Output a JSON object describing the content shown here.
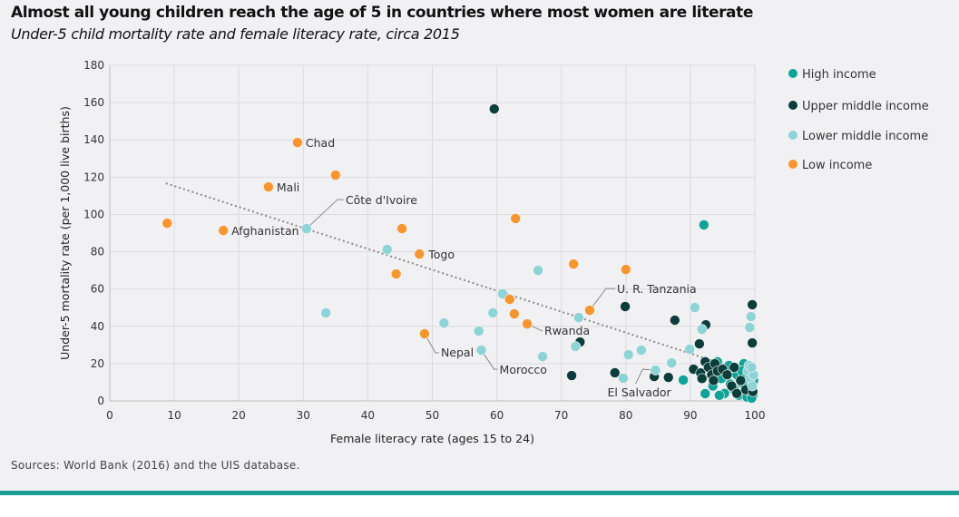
{
  "title": "Almost all young children reach the age of 5 in countries where most women are literate",
  "subtitle": "Under-5 child mortality rate and female literacy rate, circa 2015",
  "source": "Sources: World Bank (2016) and the UIS database.",
  "colors": {
    "background": "#f1f1f3",
    "accent_bar": "#1b9e96",
    "grid": "#dcdcdf",
    "trend": "#8a8a8a"
  },
  "chart_data": {
    "type": "scatter",
    "xlabel": "Female literacy rate (ages 15 to 24)",
    "ylabel": "Under-5 mortality rate (per 1,000 live births)",
    "xlim": [
      0,
      100
    ],
    "ylim": [
      0,
      180
    ],
    "xticks": [
      0,
      10,
      20,
      30,
      40,
      50,
      60,
      70,
      80,
      90,
      100
    ],
    "yticks": [
      0,
      20,
      40,
      60,
      80,
      100,
      120,
      140,
      160,
      180
    ],
    "grid": true,
    "legend_position": "right",
    "trendline": {
      "style": "dotted",
      "points": [
        [
          8.7,
          116.7
        ],
        [
          96.6,
          18
        ]
      ]
    },
    "series": [
      {
        "name": "High income",
        "color": "#0ea396",
        "points": [
          [
            92.1,
            94.4
          ],
          [
            88.9,
            11.2
          ],
          [
            92.3,
            3.9
          ],
          [
            93.5,
            8
          ],
          [
            94.2,
            21
          ],
          [
            94.8,
            12
          ],
          [
            95.3,
            4
          ],
          [
            95.6,
            16
          ],
          [
            96.2,
            9
          ],
          [
            96.8,
            6
          ],
          [
            97.2,
            14
          ],
          [
            97.5,
            3
          ],
          [
            97.9,
            10
          ],
          [
            98.3,
            20
          ],
          [
            98.5,
            7
          ],
          [
            98.8,
            2
          ],
          [
            99.0,
            13
          ],
          [
            99.2,
            5
          ],
          [
            99.4,
            17
          ],
          [
            99.6,
            9
          ],
          [
            99.7,
            3
          ],
          [
            99.8,
            11
          ],
          [
            94.5,
            3
          ],
          [
            96.0,
            19
          ],
          [
            98.0,
            16
          ],
          [
            99.5,
            1.5
          ],
          [
            98.6,
            12
          ]
        ]
      },
      {
        "name": "Upper middle income",
        "color": "#0b3d3a",
        "points": [
          [
            59.6,
            156.6
          ],
          [
            72.9,
            31.6
          ],
          [
            71.6,
            13.6
          ],
          [
            78.3,
            15.1
          ],
          [
            79.9,
            50.6
          ],
          [
            87.6,
            43.3
          ],
          [
            92.4,
            40.8
          ],
          [
            91.4,
            30.6
          ],
          [
            99.6,
            51.6
          ],
          [
            99.6,
            31.1
          ],
          [
            84.4,
            13.1
          ],
          [
            86.6,
            12.6
          ],
          [
            90.5,
            17
          ],
          [
            91.6,
            15
          ],
          [
            92.3,
            21
          ],
          [
            92.8,
            18
          ],
          [
            93.3,
            14
          ],
          [
            93.8,
            20
          ],
          [
            94.2,
            16
          ],
          [
            95.0,
            17
          ],
          [
            95.7,
            14
          ],
          [
            96.4,
            8
          ],
          [
            96.8,
            18
          ],
          [
            97.2,
            4
          ],
          [
            97.8,
            11
          ],
          [
            98.6,
            6
          ],
          [
            99.3,
            15
          ],
          [
            99.7,
            5
          ],
          [
            93.6,
            11
          ],
          [
            91.8,
            12
          ]
        ]
      },
      {
        "name": "Lower middle income",
        "color": "#8ed3d7",
        "points": [
          [
            30.5,
            92.4
          ],
          [
            33.5,
            47.2
          ],
          [
            43.0,
            81.2
          ],
          [
            51.8,
            41.8
          ],
          [
            57.2,
            37.5
          ],
          [
            57.6,
            27.2
          ],
          [
            59.4,
            47.2
          ],
          [
            60.9,
            57.4
          ],
          [
            66.4,
            70.0
          ],
          [
            67.1,
            23.8
          ],
          [
            72.7,
            44.7
          ],
          [
            72.2,
            29.2
          ],
          [
            79.6,
            12.2
          ],
          [
            80.4,
            24.8
          ],
          [
            82.4,
            27.2
          ],
          [
            84.6,
            16.5
          ],
          [
            87.1,
            20.4
          ],
          [
            89.9,
            27.7
          ],
          [
            90.7,
            50.1
          ],
          [
            91.8,
            38.4
          ],
          [
            99.4,
            45.2
          ],
          [
            99.2,
            39.4
          ],
          [
            98.9,
            16
          ],
          [
            99.3,
            12
          ],
          [
            99.6,
            8
          ],
          [
            99.8,
            14
          ],
          [
            99.1,
            19
          ],
          [
            99.5,
            18
          ]
        ]
      },
      {
        "name": "Low income",
        "color": "#f7962e",
        "points": [
          [
            8.9,
            95.3
          ],
          [
            17.6,
            91.4
          ],
          [
            24.6,
            114.8
          ],
          [
            29.1,
            138.6
          ],
          [
            35.0,
            121.1
          ],
          [
            45.3,
            92.4
          ],
          [
            44.4,
            68.1
          ],
          [
            48.0,
            78.8
          ],
          [
            48.8,
            36.0
          ],
          [
            62.9,
            97.8
          ],
          [
            62.0,
            54.5
          ],
          [
            62.7,
            46.7
          ],
          [
            64.7,
            41.3
          ],
          [
            71.9,
            73.4
          ],
          [
            74.4,
            48.6
          ],
          [
            80.0,
            70.5
          ]
        ]
      }
    ],
    "annotations": [
      {
        "label": "Chad",
        "x": 29.1,
        "y": 138.6
      },
      {
        "label": "Mali",
        "x": 24.6,
        "y": 114.8
      },
      {
        "label": "Côte d'Ivoire",
        "x": 30.5,
        "y": 92.4
      },
      {
        "label": "Afghanistan",
        "x": 17.6,
        "y": 91.4
      },
      {
        "label": "Togo",
        "x": 48.0,
        "y": 78.8
      },
      {
        "label": "U. R. Tanzania",
        "x": 74.4,
        "y": 48.6
      },
      {
        "label": "Rwanda",
        "x": 64.7,
        "y": 41.3
      },
      {
        "label": "Nepal",
        "x": 48.8,
        "y": 36.0
      },
      {
        "label": "Morocco",
        "x": 57.6,
        "y": 27.2
      },
      {
        "label": "El Salvador",
        "x": 84.6,
        "y": 16.5
      }
    ]
  }
}
